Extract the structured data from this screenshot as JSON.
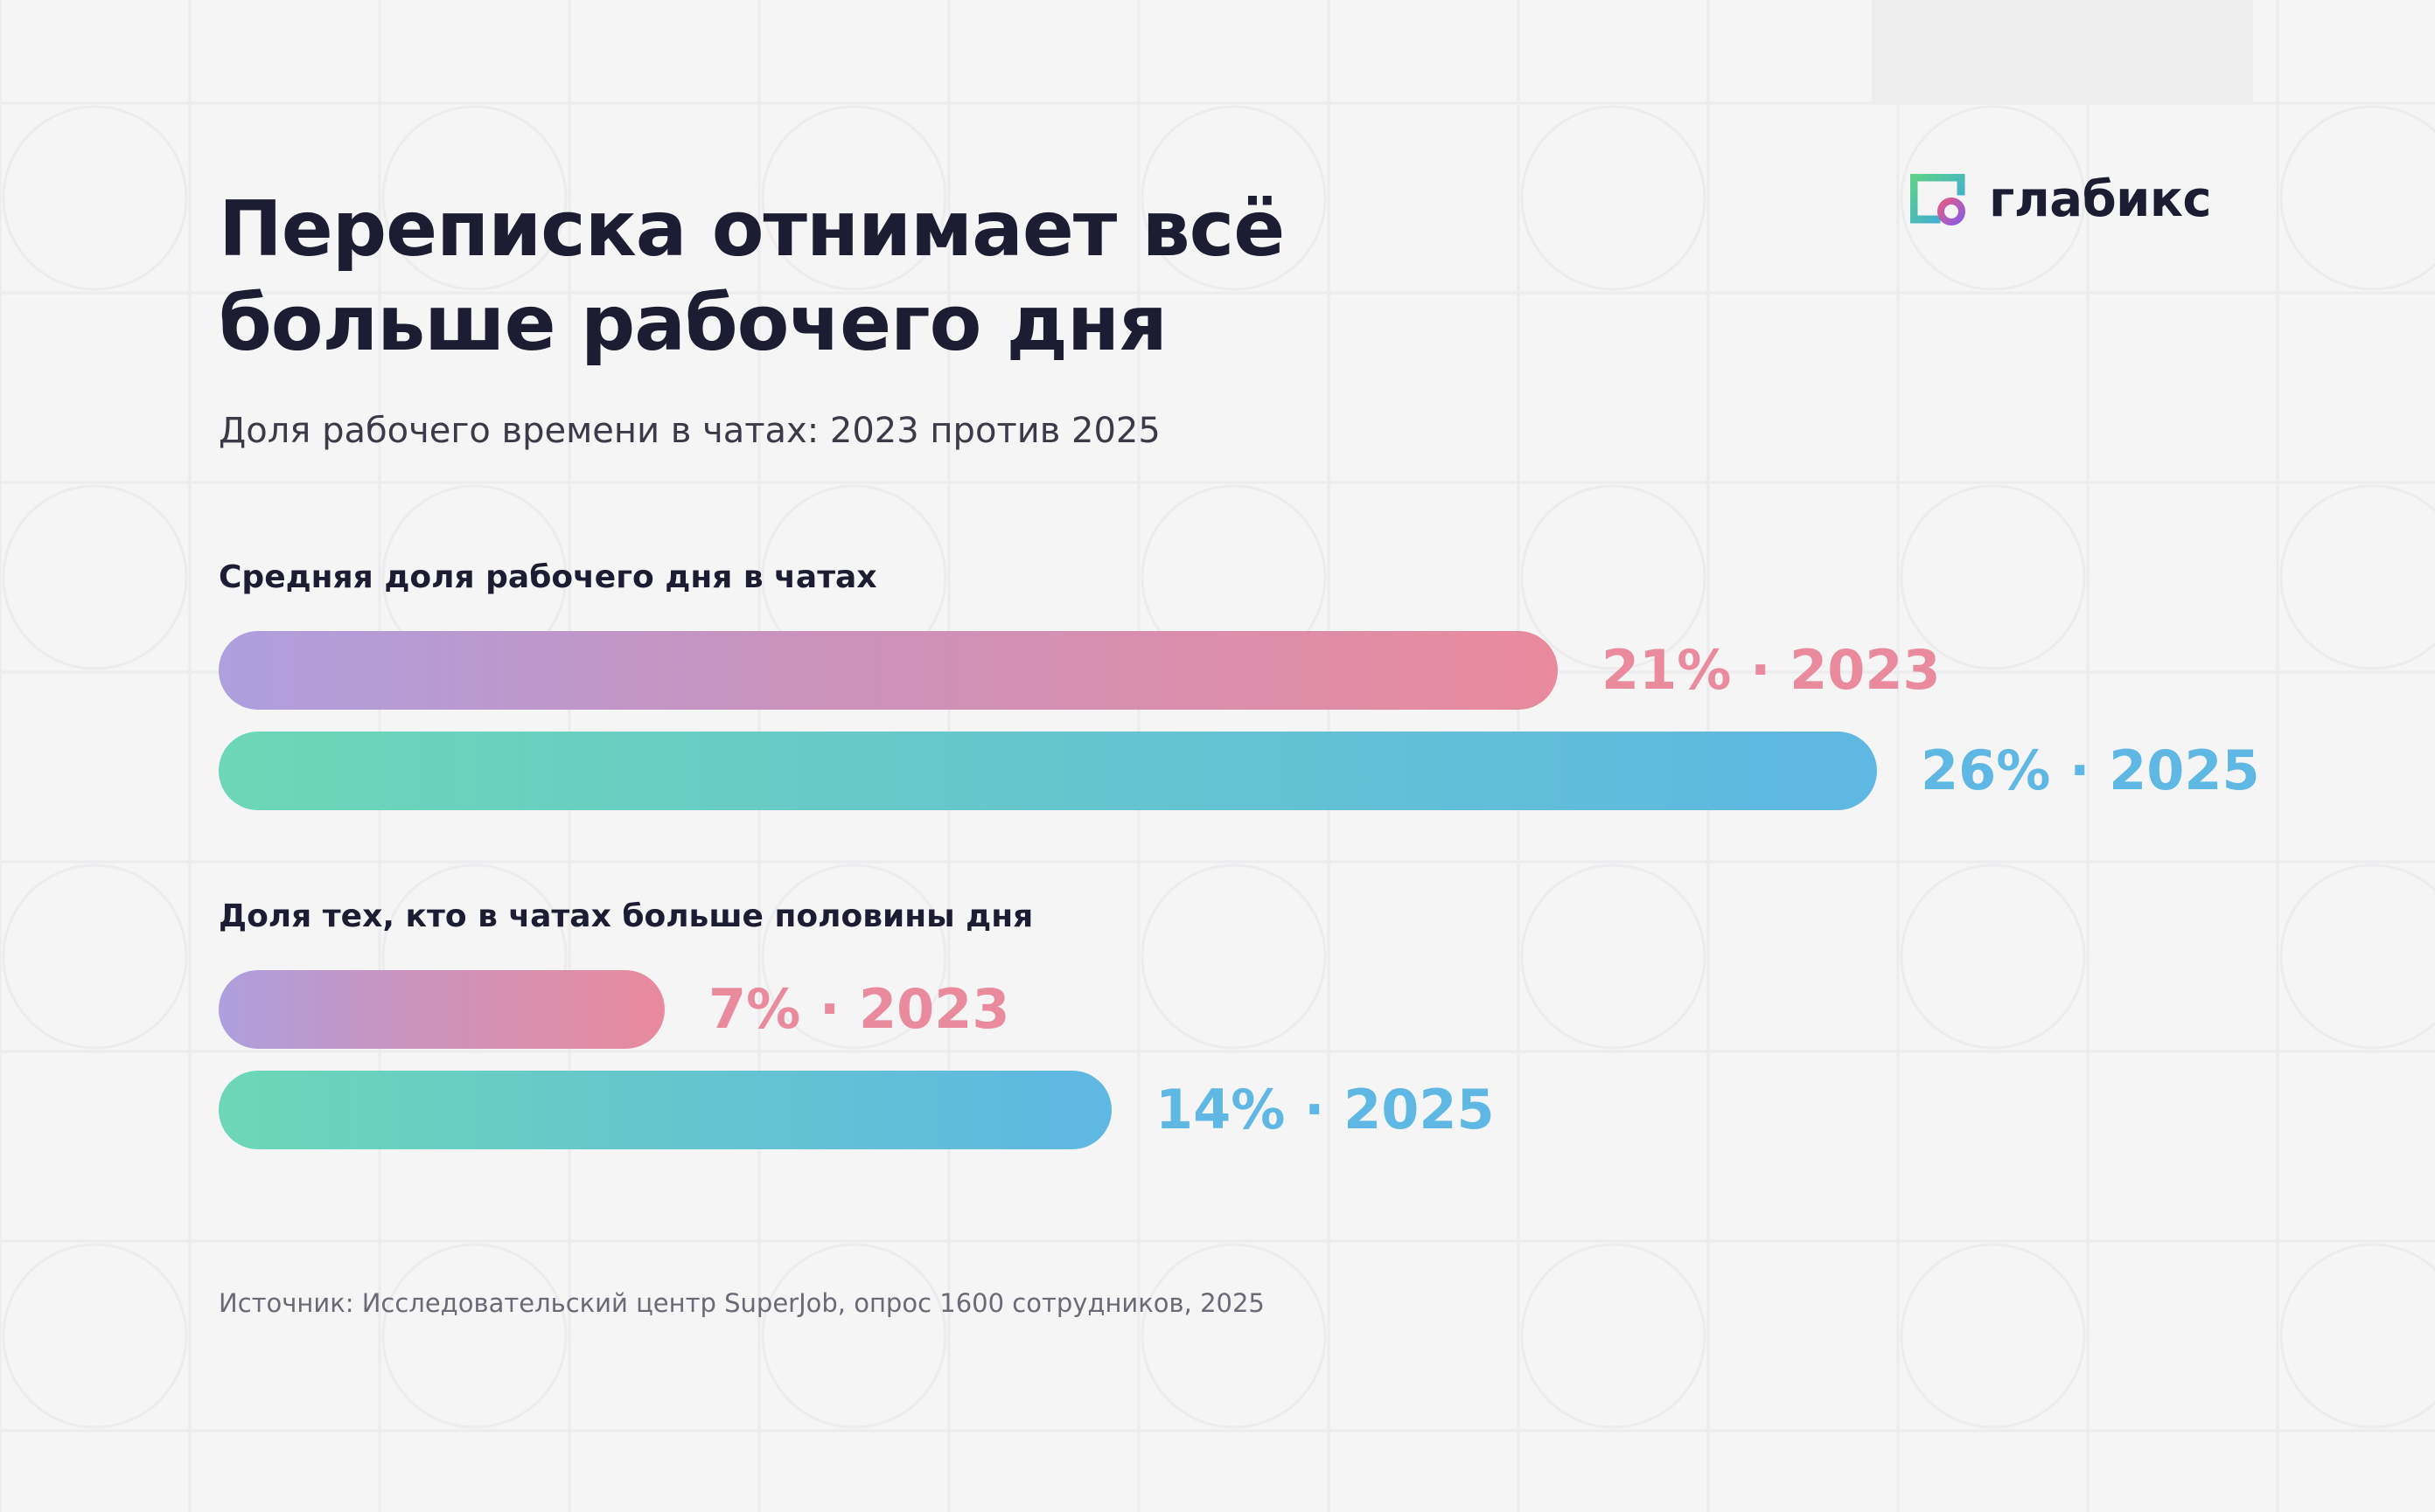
{
  "brand": {
    "name": "глабикс",
    "icon": "glabix-logo-icon"
  },
  "title": "Переписка отнимает всё больше рабочего дня",
  "subtitle": "Доля рабочего времени в чатах: 2023 против 2025",
  "colors": {
    "series_2023": [
      "#ae9fde",
      "#e98a9d"
    ],
    "series_2025": [
      "#6cd7b6",
      "#5fb7e3"
    ],
    "text_dark": "#1c1c32"
  },
  "chart_data": {
    "type": "bar",
    "orientation": "horizontal",
    "unit": "%",
    "groups": [
      {
        "title": "Средняя доля рабочего дня в чатах",
        "bars": [
          {
            "year": "2023",
            "value": 21,
            "label": "21% · 2023"
          },
          {
            "year": "2025",
            "value": 26,
            "label": "26% · 2025"
          }
        ]
      },
      {
        "title": "Доля тех, кто в чатах больше половины дня",
        "bars": [
          {
            "year": "2023",
            "value": 7,
            "label": "7% · 2023"
          },
          {
            "year": "2025",
            "value": 14,
            "label": "14% · 2025"
          }
        ]
      }
    ]
  },
  "source": "Источник: Исследовательский центр SuperJob, опрос 1600 сотрудников, 2025"
}
